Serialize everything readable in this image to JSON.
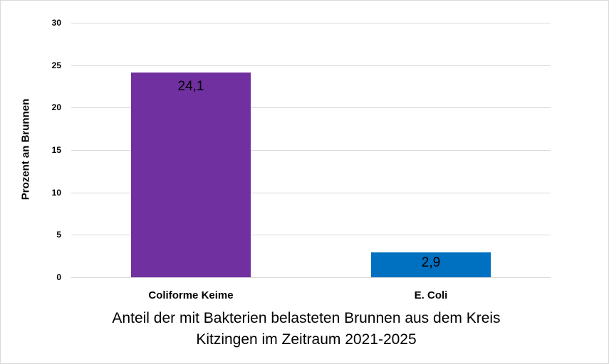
{
  "chart_data": {
    "type": "bar",
    "title": "",
    "categories": [
      "Coliforme Keime",
      "E. Coli"
    ],
    "values": [
      24.1,
      2.9
    ],
    "value_labels": [
      "24,1",
      "2,9"
    ],
    "colors": [
      "#7030a0",
      "#0070c0"
    ],
    "xlabel": "Anteil der mit Bakterien belasteten Brunnen aus dem Kreis Kitzingen im Zeitraum 2021-2025",
    "xlabel_lines": [
      "Anteil der mit Bakterien belasteten Brunnen aus dem Kreis",
      "Kitzingen im Zeitraum 2021-2025"
    ],
    "ylabel": "Prozent an Brunnen",
    "ylim": [
      0,
      30
    ],
    "yticks": [
      "0",
      "5",
      "10",
      "15",
      "20",
      "25",
      "30"
    ],
    "grid": true,
    "legend": "none"
  }
}
